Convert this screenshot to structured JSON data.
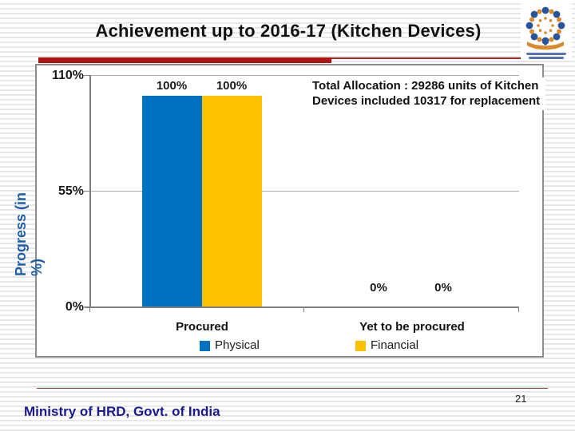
{
  "slide": {
    "title": "Achievement up to 2016-17 (Kitchen Devices)"
  },
  "info_box": {
    "text": "Total Allocation : 29286 units of Kitchen Devices included 10317 for replacement"
  },
  "chart_data": {
    "type": "bar",
    "title": "",
    "ylabel": "Progress (in %)",
    "ylabel_lines": [
      "Progress (in",
      "%)"
    ],
    "categories": [
      "Procured",
      "Yet to be procured"
    ],
    "series": [
      {
        "name": "Physical",
        "color": "#0070C0",
        "values": [
          100,
          0
        ]
      },
      {
        "name": "Financial",
        "color": "#FFC000",
        "values": [
          100,
          0
        ]
      }
    ],
    "data_labels": [
      [
        "100%",
        "100%"
      ],
      [
        "0%",
        "0%"
      ]
    ],
    "yticks": [
      "110%",
      "55%",
      "0%"
    ],
    "ylim": [
      0,
      110
    ],
    "ytick_interval": 55,
    "grid": true,
    "legend_position": "bottom"
  },
  "footer": {
    "text": "Ministry of HRD, Govt. of India",
    "page_number": "21"
  },
  "colors": {
    "divider_red": "#B01513",
    "footer_text_blue": "#1A1A8C",
    "axis_title_blue": "#1F5FA8",
    "physical_blue": "#0070C0",
    "financial_gold": "#FFC000"
  }
}
